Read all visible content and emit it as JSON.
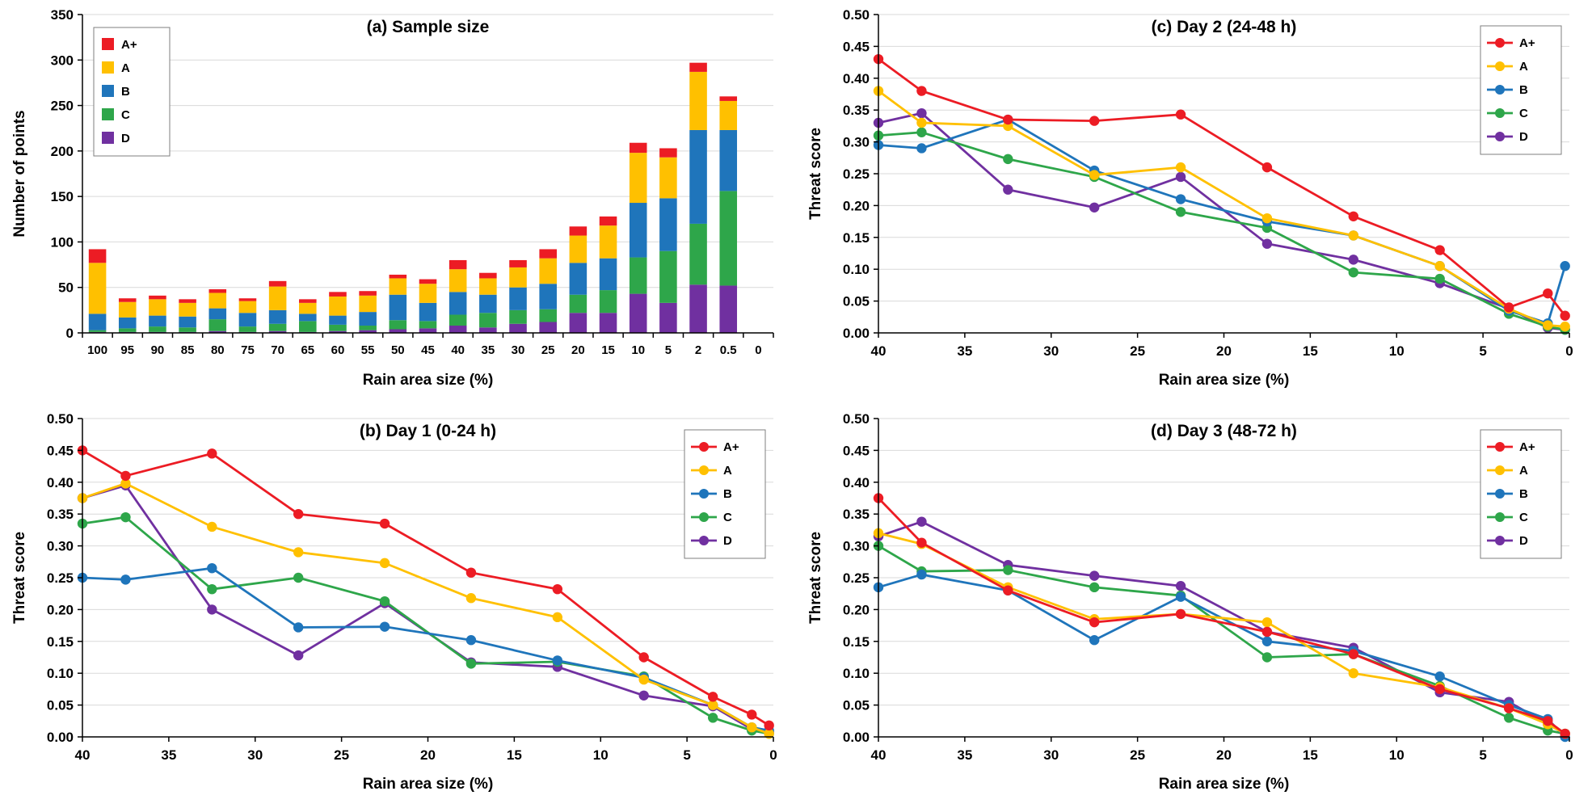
{
  "figure": {
    "background": "#FFFFFF",
    "grid_color": "#D9D9D9",
    "axis_color": "#000000",
    "text_color": "#000000",
    "legend_border": "#7F7F7F"
  },
  "colors": {
    "A+": "#EC1C24",
    "A": "#FFC000",
    "B": "#1F75BB",
    "C": "#2EA64A",
    "D": "#7030A0"
  },
  "chart_data": [
    {
      "id": "a",
      "type": "bar",
      "title": "(a) Sample size",
      "xlabel": "Rain area size (%)",
      "ylabel": "Number of points",
      "ylim": [
        0,
        350
      ],
      "ytick": 50,
      "yformat": "int",
      "grid": "horizontal",
      "legend_position": "top-left",
      "legend": [
        "A+",
        "A",
        "B",
        "C",
        "D"
      ],
      "categories": [
        "100",
        "95",
        "90",
        "85",
        "80",
        "75",
        "70",
        "65",
        "60",
        "55",
        "50",
        "45",
        "40",
        "35",
        "30",
        "25",
        "20",
        "15",
        "10",
        "5",
        "2",
        "0.5",
        "0"
      ],
      "stack_order": [
        "D",
        "C",
        "B",
        "A",
        "A+"
      ],
      "series": [
        {
          "name": "A+",
          "values": [
            15,
            4,
            4,
            4,
            4,
            3,
            6,
            4,
            5,
            5,
            4,
            5,
            10,
            6,
            8,
            10,
            10,
            10,
            11,
            10,
            10,
            5,
            0
          ]
        },
        {
          "name": "A",
          "values": [
            56,
            17,
            18,
            15,
            17,
            13,
            26,
            12,
            21,
            18,
            18,
            21,
            25,
            18,
            22,
            28,
            30,
            36,
            55,
            45,
            64,
            32,
            0
          ]
        },
        {
          "name": "B",
          "values": [
            18,
            12,
            12,
            12,
            12,
            15,
            15,
            8,
            10,
            15,
            28,
            20,
            25,
            20,
            25,
            28,
            35,
            35,
            60,
            58,
            103,
            67,
            0
          ]
        },
        {
          "name": "C",
          "values": [
            2,
            4,
            6,
            5,
            13,
            6,
            8,
            12,
            7,
            5,
            10,
            8,
            12,
            16,
            15,
            14,
            20,
            25,
            40,
            57,
            67,
            104,
            0
          ]
        },
        {
          "name": "D",
          "values": [
            1,
            1,
            1,
            1,
            2,
            1,
            2,
            1,
            2,
            3,
            4,
            5,
            8,
            6,
            10,
            12,
            22,
            22,
            43,
            33,
            53,
            52,
            0
          ]
        }
      ]
    },
    {
      "id": "c",
      "type": "line",
      "title": "(c) Day 2 (24-48 h)",
      "xlabel": "Rain area size (%)",
      "ylabel": "Threat score",
      "xlim": [
        40,
        0
      ],
      "xticks": [
        40,
        35,
        30,
        25,
        20,
        15,
        10,
        5,
        0
      ],
      "ylim": [
        0,
        0.5
      ],
      "ytick": 0.05,
      "yformat": "2dp",
      "grid": "horizontal",
      "legend_position": "top-right",
      "legend": [
        "A+",
        "A",
        "B",
        "C",
        "D"
      ],
      "x": [
        40,
        37.5,
        32.5,
        27.5,
        22.5,
        17.5,
        12.5,
        7.5,
        3.5,
        1.25,
        0.25
      ],
      "series": [
        {
          "name": "A+",
          "values": [
            0.43,
            0.38,
            0.335,
            0.333,
            0.343,
            0.26,
            0.183,
            0.13,
            0.04,
            0.062,
            0.027
          ]
        },
        {
          "name": "A",
          "values": [
            0.38,
            0.33,
            0.325,
            0.248,
            0.26,
            0.18,
            0.153,
            0.105,
            0.038,
            0.012,
            0.01
          ]
        },
        {
          "name": "B",
          "values": [
            0.295,
            0.29,
            0.335,
            0.255,
            0.21,
            0.175,
            0.153,
            0.105,
            0.035,
            0.015,
            0.105
          ]
        },
        {
          "name": "C",
          "values": [
            0.31,
            0.315,
            0.273,
            0.245,
            0.19,
            0.165,
            0.095,
            0.085,
            0.03,
            0.01,
            0.005
          ]
        },
        {
          "name": "D",
          "values": [
            0.33,
            0.345,
            0.225,
            0.197,
            0.245,
            0.14,
            0.115,
            0.078,
            0.038,
            0.008,
            0.005
          ]
        }
      ]
    },
    {
      "id": "b",
      "type": "line",
      "title": "(b) Day 1 (0-24 h)",
      "xlabel": "Rain area size (%)",
      "ylabel": "Threat score",
      "xlim": [
        40,
        0
      ],
      "xticks": [
        40,
        35,
        30,
        25,
        20,
        15,
        10,
        5,
        0
      ],
      "ylim": [
        0,
        0.5
      ],
      "ytick": 0.05,
      "yformat": "2dp",
      "grid": "horizontal",
      "legend_position": "top-right",
      "legend": [
        "A+",
        "A",
        "B",
        "C",
        "D"
      ],
      "x": [
        40,
        37.5,
        32.5,
        27.5,
        22.5,
        17.5,
        12.5,
        7.5,
        3.5,
        1.25,
        0.25
      ],
      "series": [
        {
          "name": "A+",
          "values": [
            0.45,
            0.41,
            0.445,
            0.35,
            0.335,
            0.258,
            0.232,
            0.125,
            0.063,
            0.035,
            0.018
          ]
        },
        {
          "name": "A",
          "values": [
            0.375,
            0.398,
            0.33,
            0.29,
            0.273,
            0.218,
            0.188,
            0.09,
            0.05,
            0.015,
            0.005
          ]
        },
        {
          "name": "B",
          "values": [
            0.25,
            0.247,
            0.265,
            0.172,
            0.173,
            0.152,
            0.12,
            0.093,
            0.05,
            0.015,
            0.01
          ]
        },
        {
          "name": "C",
          "values": [
            0.335,
            0.345,
            0.232,
            0.25,
            0.213,
            0.115,
            0.118,
            0.095,
            0.03,
            0.01,
            0.005
          ]
        },
        {
          "name": "D",
          "values": [
            0.375,
            0.395,
            0.2,
            0.128,
            0.21,
            0.117,
            0.11,
            0.065,
            0.048,
            0.012,
            0.008
          ]
        }
      ]
    },
    {
      "id": "d",
      "type": "line",
      "title": "(d) Day 3 (48-72 h)",
      "xlabel": "Rain area size (%)",
      "ylabel": "Threat score",
      "xlim": [
        40,
        0
      ],
      "xticks": [
        40,
        35,
        30,
        25,
        20,
        15,
        10,
        5,
        0
      ],
      "ylim": [
        0,
        0.5
      ],
      "ytick": 0.05,
      "yformat": "2dp",
      "grid": "horizontal",
      "legend_position": "top-right",
      "legend": [
        "A+",
        "A",
        "B",
        "C",
        "D"
      ],
      "x": [
        40,
        37.5,
        32.5,
        27.5,
        22.5,
        17.5,
        12.5,
        7.5,
        3.5,
        1.25,
        0.25
      ],
      "series": [
        {
          "name": "A+",
          "values": [
            0.375,
            0.305,
            0.23,
            0.18,
            0.193,
            0.165,
            0.13,
            0.075,
            0.045,
            0.025,
            0.005
          ]
        },
        {
          "name": "A",
          "values": [
            0.32,
            0.303,
            0.235,
            0.185,
            0.193,
            0.18,
            0.1,
            0.078,
            0.045,
            0.02,
            0.005
          ]
        },
        {
          "name": "B",
          "values": [
            0.235,
            0.255,
            0.23,
            0.152,
            0.22,
            0.15,
            0.135,
            0.095,
            0.05,
            0.028,
            0.0
          ]
        },
        {
          "name": "C",
          "values": [
            0.3,
            0.26,
            0.262,
            0.235,
            0.222,
            0.125,
            0.13,
            0.08,
            0.03,
            0.01,
            0.005
          ]
        },
        {
          "name": "D",
          "values": [
            0.315,
            0.338,
            0.27,
            0.253,
            0.237,
            0.165,
            0.14,
            0.07,
            0.055,
            0.02,
            0.005
          ]
        }
      ]
    }
  ]
}
